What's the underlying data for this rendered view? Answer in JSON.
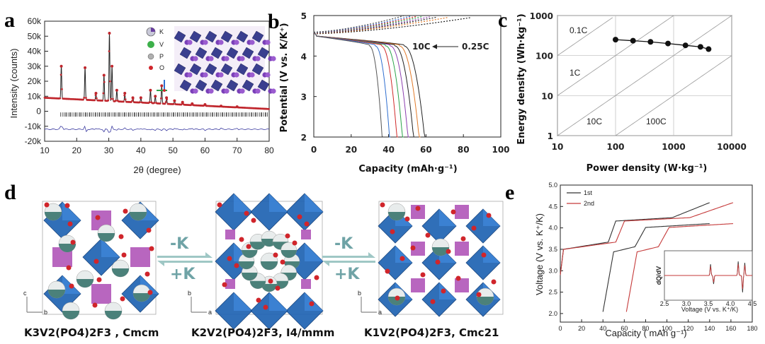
{
  "panels": {
    "a": {
      "label": "a"
    },
    "b": {
      "label": "b"
    },
    "c": {
      "label": "c"
    },
    "d": {
      "label": "d"
    },
    "e": {
      "label": "e"
    }
  },
  "legend_a": {
    "items": [
      {
        "label": "K",
        "color": "#c8c8d8"
      },
      {
        "label": "V",
        "color": "#3db04a"
      },
      {
        "label": "P",
        "color": "#b0b0b0"
      },
      {
        "label": "O",
        "color": "#d0252b"
      }
    ]
  },
  "annotations_b": {
    "fast": "10C",
    "slow": "0.25C"
  },
  "annotations_c": {
    "rates": [
      "0.1C",
      "1C",
      "10C",
      "100C"
    ]
  },
  "panel_d": {
    "arrow_left_top": "-K",
    "arrow_left_bottom": "+K",
    "arrow_right_top": "-K",
    "arrow_right_bottom": "+K",
    "captions": [
      "K3V2(PO4)2F3 , Cmcm",
      "K2V2(PO4)2F3, I4/mmm",
      "K1V2(PO4)2F3, Cmc21"
    ],
    "axis_letters": {
      "c": "c",
      "b": "b",
      "a": "a"
    },
    "colors": {
      "octahedron": "#1f63b3",
      "tetrahedron": "#b055b8",
      "oxygen": "#d0252b",
      "potassium": "#2f6f66",
      "vacancy": "#e8ecec",
      "arrow": "#9fc7c5"
    }
  },
  "chart_data": [
    {
      "panel": "a",
      "type": "line",
      "xlabel": "2θ (degree)",
      "ylabel": "Intensity (counts)",
      "xlim": [
        10,
        80
      ],
      "ylim": [
        -20000,
        60000
      ],
      "xticks": [
        10,
        20,
        30,
        40,
        50,
        60,
        70,
        80
      ],
      "yticks": [
        "60k",
        "50k",
        "40k",
        "30k",
        "20k",
        "10k",
        "0",
        "-10k",
        "-20k"
      ],
      "ytick_values": [
        60000,
        50000,
        40000,
        30000,
        20000,
        10000,
        0,
        -10000,
        -20000
      ],
      "peaks": [
        {
          "x": 15.2,
          "y": 30000
        },
        {
          "x": 22.6,
          "y": 29000
        },
        {
          "x": 26.0,
          "y": 12000
        },
        {
          "x": 28.5,
          "y": 24000
        },
        {
          "x": 30.2,
          "y": 52000
        },
        {
          "x": 31.0,
          "y": 30000
        },
        {
          "x": 32.5,
          "y": 14000
        },
        {
          "x": 35.0,
          "y": 12000
        },
        {
          "x": 37.5,
          "y": 9000
        },
        {
          "x": 40.0,
          "y": 9000
        },
        {
          "x": 43.0,
          "y": 14000
        },
        {
          "x": 44.5,
          "y": 10000
        },
        {
          "x": 46.5,
          "y": 17000
        },
        {
          "x": 48.0,
          "y": 9000
        },
        {
          "x": 50.5,
          "y": 7000
        },
        {
          "x": 53.0,
          "y": 6000
        },
        {
          "x": 56.0,
          "y": 5000
        },
        {
          "x": 60.0,
          "y": 4500
        },
        {
          "x": 65.0,
          "y": 3500
        },
        {
          "x": 70.0,
          "y": 3000
        }
      ],
      "background_start": 9000,
      "background_end": 1500,
      "difference_offset": -12000,
      "colors": {
        "observed": "#c0262d",
        "calc": "#222222",
        "difference": "#3a3aa0",
        "ticks": "#222222"
      }
    },
    {
      "panel": "b",
      "type": "line",
      "xlabel": "Capacity (mAh·g⁻¹)",
      "ylabel": "Potential (V vs. K/K⁺)",
      "xlim": [
        0,
        100
      ],
      "ylim": [
        2,
        5
      ],
      "xticks": [
        0,
        20,
        40,
        60,
        80,
        100
      ],
      "yticks": [
        2,
        3,
        4,
        5
      ],
      "series": [
        {
          "capacity": 60,
          "charge_end": 84,
          "color": "#222222"
        },
        {
          "capacity": 57,
          "charge_end": 72,
          "color": "#e27b2a"
        },
        {
          "capacity": 54,
          "charge_end": 66,
          "color": "#222222"
        },
        {
          "capacity": 51,
          "charge_end": 62,
          "color": "#8c3fb0"
        },
        {
          "capacity": 48,
          "charge_end": 58,
          "color": "#2aa34a"
        },
        {
          "capacity": 45,
          "charge_end": 55,
          "color": "#d02a2a"
        },
        {
          "capacity": 41,
          "charge_end": 52,
          "color": "#2f6fd0"
        },
        {
          "capacity": 37,
          "charge_end": 48,
          "color": "#555555"
        }
      ]
    },
    {
      "panel": "c",
      "type": "scatter",
      "xlabel": "Power density (W·kg⁻¹)",
      "ylabel": "Energy density (Wh·kg⁻¹)",
      "xscale": "log",
      "yscale": "log",
      "xlim": [
        10,
        10000
      ],
      "ylim": [
        1,
        1000
      ],
      "xticks": [
        10,
        100,
        1000,
        10000
      ],
      "yticks": [
        1,
        10,
        100,
        1000
      ],
      "x": [
        100,
        200,
        400,
        800,
        1600,
        2900,
        4000
      ],
      "y": [
        250,
        235,
        220,
        200,
        180,
        165,
        145
      ],
      "grid": true
    },
    {
      "panel": "e",
      "type": "line",
      "xlabel": "Capacity ( mAh g⁻¹)",
      "ylabel": "Voltage (V vs. K⁺/K)",
      "xlim": [
        0,
        180
      ],
      "ylim": [
        1.8,
        5.0
      ],
      "xticks": [
        0,
        20,
        40,
        60,
        80,
        100,
        120,
        140,
        160,
        180
      ],
      "yticks": [
        2.0,
        2.5,
        3.0,
        3.5,
        4.0,
        4.5,
        5.0
      ],
      "series": [
        {
          "name": "1st",
          "color": "#333333",
          "offset": 0
        },
        {
          "name": "2nd",
          "color": "#c53a3a",
          "offset": 22
        }
      ],
      "inset": {
        "xlabel": "Voltage (V vs. K⁺/K)",
        "ylabel": "dQ/dV",
        "xlim": [
          2.5,
          4.5
        ],
        "xticks": [
          "2.5",
          "3.0",
          "3.5",
          "4.0",
          "4.5"
        ]
      }
    }
  ]
}
